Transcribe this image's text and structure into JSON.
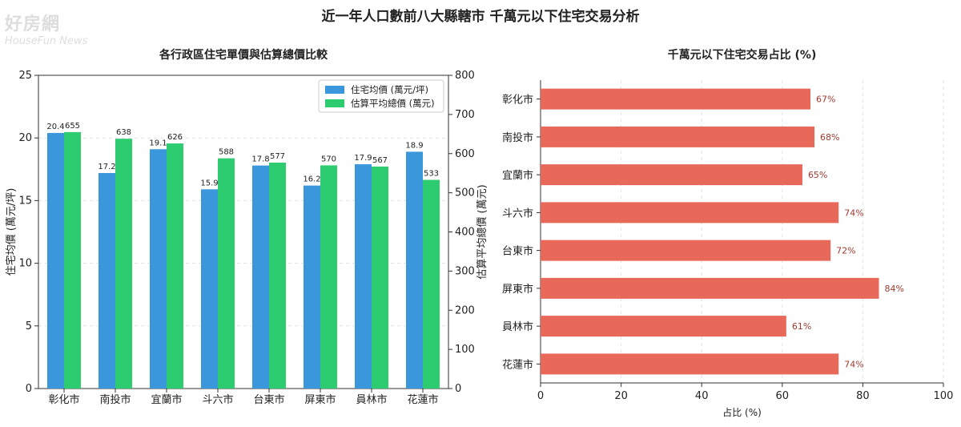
{
  "page_title": "近一年人口數前八大縣轄市 千萬元以下住宅交易分析",
  "watermark": {
    "line1": "好房網",
    "line2": "HouseFun News"
  },
  "chart_data": [
    {
      "type": "bar",
      "title": "各行政區住宅單價與估算總價比較",
      "categories": [
        "彰化市",
        "南投市",
        "宜蘭市",
        "斗六市",
        "台東市",
        "屏東市",
        "員林市",
        "花蓮市"
      ],
      "series": [
        {
          "name": "住宅均價 (萬元/坪)",
          "axis": "left",
          "color": "#3a97db",
          "values": [
            20.4,
            17.2,
            19.1,
            15.9,
            17.8,
            16.2,
            17.9,
            18.9
          ],
          "labels": [
            "20.4",
            "17.2",
            "19.1",
            "15.9",
            "17.8",
            "16.2",
            "17.9",
            "18.9"
          ]
        },
        {
          "name": "估算平均總價 (萬元)",
          "axis": "right",
          "color": "#2ecc71",
          "values": [
            655,
            638,
            626,
            588,
            577,
            570,
            567,
            533
          ],
          "labels": [
            "655",
            "638",
            "626",
            "588",
            "577",
            "570",
            "567",
            "533"
          ]
        }
      ],
      "ylabel": "住宅均價 (萬元/坪)",
      "ylabel_right": "估算平均總價 (萬元)",
      "ylim": [
        0,
        25
      ],
      "ylim_right": [
        0,
        800
      ],
      "yticks": [
        "0",
        "5",
        "10",
        "15",
        "20",
        "25"
      ],
      "yticks_right": [
        "0",
        "100",
        "200",
        "300",
        "400",
        "500",
        "600",
        "700",
        "800"
      ],
      "legend_position": "top-right",
      "grid": true
    },
    {
      "type": "bar",
      "orientation": "horizontal",
      "title": "千萬元以下住宅交易占比 (%)",
      "categories": [
        "彰化市",
        "南投市",
        "宜蘭市",
        "斗六市",
        "台東市",
        "屏東市",
        "員林市",
        "花蓮市"
      ],
      "values": [
        67,
        68,
        65,
        74,
        72,
        84,
        61,
        74
      ],
      "labels": [
        "67%",
        "68%",
        "65%",
        "74%",
        "72%",
        "84%",
        "61%",
        "74%"
      ],
      "color": "#e8685a",
      "xlabel": "占比 (%)",
      "xlim": [
        0,
        100
      ],
      "xticks": [
        "0",
        "20",
        "40",
        "60",
        "80",
        "100"
      ],
      "grid": true
    }
  ]
}
